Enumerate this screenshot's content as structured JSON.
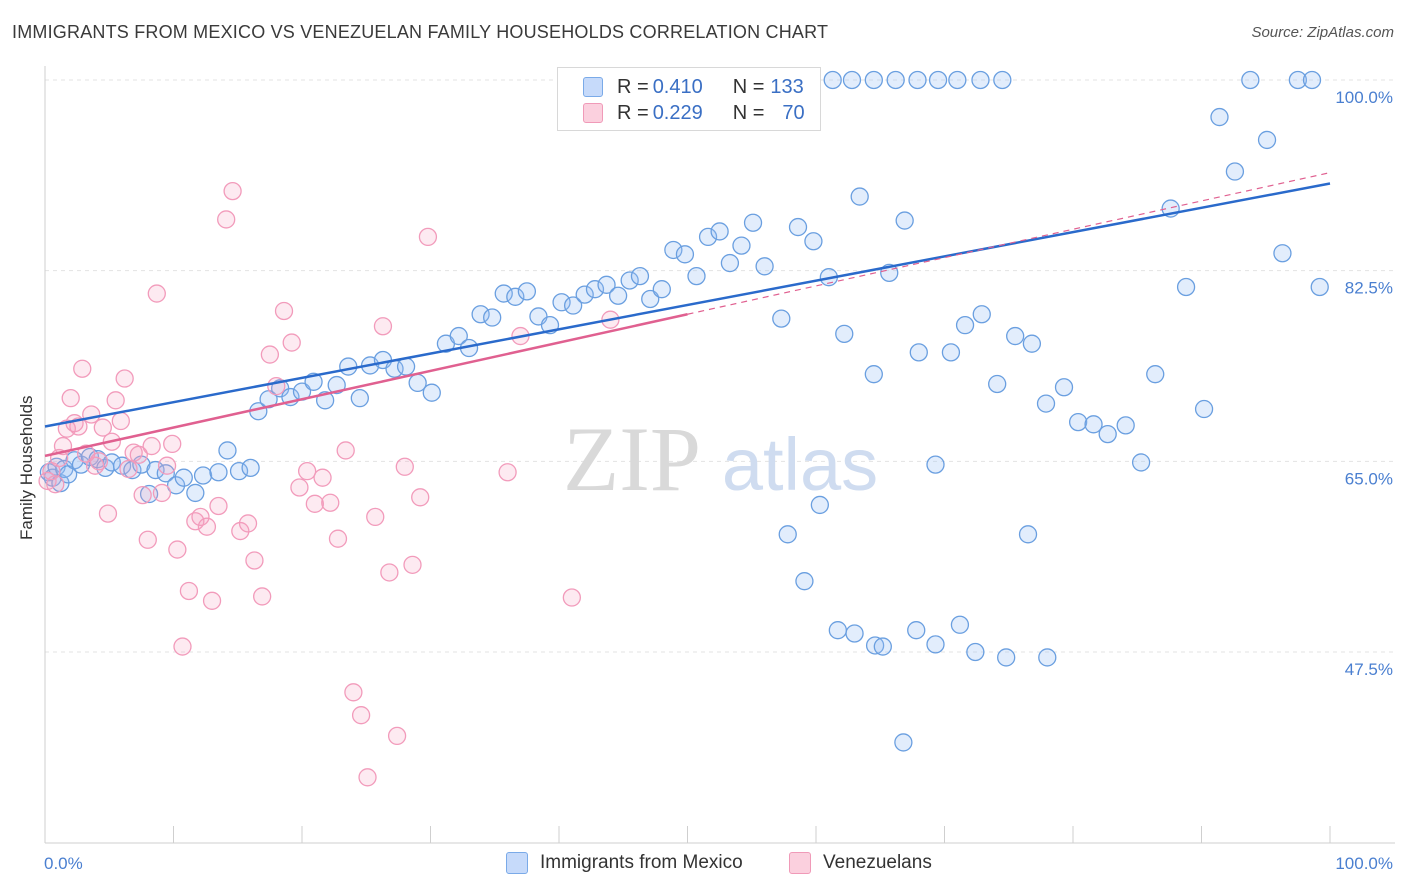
{
  "title": "IMMIGRANTS FROM MEXICO VS VENEZUELAN FAMILY HOUSEHOLDS CORRELATION CHART",
  "source": "Source: ZipAtlas.com",
  "watermark": {
    "zip": "ZIP",
    "atlas": "atlas"
  },
  "legend": {
    "rows": [
      {
        "r_label": "R = ",
        "r_value": "0.410",
        "n_label": "N = ",
        "n_value": "133",
        "color": "#7aaae8"
      },
      {
        "r_label": "R = ",
        "r_value": "0.229",
        "n_label": "N = ",
        "n_value": "70",
        "color": "#f09ab8"
      }
    ]
  },
  "bottom_legend": [
    {
      "label": "Immigrants from Mexico",
      "color": "#7aaae8"
    },
    {
      "label": "Venezuelans",
      "color": "#f09ab8"
    }
  ],
  "chart_data": {
    "type": "scatter",
    "title": "IMMIGRANTS FROM MEXICO VS VENEZUELAN FAMILY HOUSEHOLDS CORRELATION CHART",
    "xlabel": "",
    "ylabel": "Family Households",
    "xlim": [
      0,
      100
    ],
    "ylim": [
      30,
      102
    ],
    "x_tick_labels": [
      "0.0%",
      "100.0%"
    ],
    "y_ticks": [
      47.5,
      65.0,
      82.5,
      100.0
    ],
    "y_tick_labels": [
      "47.5%",
      "65.0%",
      "82.5%",
      "100.0%"
    ],
    "grid": true,
    "series": [
      {
        "name": "Immigrants from Mexico",
        "color": "#6a9fe0",
        "trend": {
          "x": [
            0,
            100
          ],
          "y": [
            68.2,
            90.5
          ],
          "color": "#2a6acb"
        },
        "points": [
          [
            0.3,
            64.0
          ],
          [
            0.6,
            63.5
          ],
          [
            0.9,
            64.5
          ],
          [
            1.2,
            63.0
          ],
          [
            1.5,
            64.3
          ],
          [
            1.8,
            63.8
          ],
          [
            2.3,
            65.1
          ],
          [
            2.8,
            64.7
          ],
          [
            3.5,
            65.4
          ],
          [
            4.1,
            65.2
          ],
          [
            4.7,
            64.4
          ],
          [
            5.2,
            64.9
          ],
          [
            6.0,
            64.6
          ],
          [
            6.8,
            64.2
          ],
          [
            7.5,
            64.7
          ],
          [
            8.1,
            62.0
          ],
          [
            8.6,
            64.2
          ],
          [
            9.4,
            63.9
          ],
          [
            10.2,
            62.8
          ],
          [
            10.8,
            63.5
          ],
          [
            11.7,
            62.1
          ],
          [
            12.3,
            63.7
          ],
          [
            13.5,
            64.0
          ],
          [
            14.2,
            66.0
          ],
          [
            15.1,
            64.1
          ],
          [
            16.0,
            64.4
          ],
          [
            16.6,
            69.6
          ],
          [
            17.4,
            70.7
          ],
          [
            18.3,
            71.7
          ],
          [
            19.1,
            70.9
          ],
          [
            20.0,
            71.4
          ],
          [
            20.9,
            72.3
          ],
          [
            21.8,
            70.6
          ],
          [
            22.7,
            72.0
          ],
          [
            23.6,
            73.7
          ],
          [
            24.5,
            70.8
          ],
          [
            25.3,
            73.8
          ],
          [
            26.3,
            74.3
          ],
          [
            27.2,
            73.5
          ],
          [
            28.1,
            73.7
          ],
          [
            29.0,
            72.2
          ],
          [
            30.1,
            71.3
          ],
          [
            31.2,
            75.8
          ],
          [
            32.2,
            76.5
          ],
          [
            33.0,
            75.4
          ],
          [
            33.9,
            78.5
          ],
          [
            34.8,
            78.2
          ],
          [
            35.7,
            80.4
          ],
          [
            36.6,
            80.1
          ],
          [
            37.5,
            80.6
          ],
          [
            38.4,
            78.3
          ],
          [
            39.3,
            77.5
          ],
          [
            40.2,
            79.6
          ],
          [
            41.1,
            79.3
          ],
          [
            42.0,
            80.3
          ],
          [
            42.8,
            80.8
          ],
          [
            43.7,
            81.2
          ],
          [
            44.6,
            80.2
          ],
          [
            45.5,
            81.6
          ],
          [
            46.3,
            82.0
          ],
          [
            47.1,
            79.9
          ],
          [
            48.0,
            80.8
          ],
          [
            48.9,
            84.4
          ],
          [
            49.8,
            84.0
          ],
          [
            50.7,
            82.0
          ],
          [
            51.6,
            85.6
          ],
          [
            52.5,
            86.1
          ],
          [
            53.3,
            83.2
          ],
          [
            54.2,
            84.8
          ],
          [
            55.1,
            86.9
          ],
          [
            56.0,
            82.9
          ],
          [
            57.3,
            78.1
          ],
          [
            58.6,
            86.5
          ],
          [
            59.8,
            85.2
          ],
          [
            61.0,
            81.9
          ],
          [
            62.2,
            76.7
          ],
          [
            63.4,
            89.3
          ],
          [
            64.5,
            73.0
          ],
          [
            65.7,
            82.3
          ],
          [
            66.9,
            87.1
          ],
          [
            68.0,
            75.0
          ],
          [
            69.3,
            64.7
          ],
          [
            70.5,
            75.0
          ],
          [
            71.6,
            77.5
          ],
          [
            72.9,
            78.5
          ],
          [
            74.1,
            72.1
          ],
          [
            75.5,
            76.5
          ],
          [
            76.8,
            75.8
          ],
          [
            77.9,
            70.3
          ],
          [
            79.3,
            71.8
          ],
          [
            80.4,
            68.6
          ],
          [
            81.6,
            68.4
          ],
          [
            82.7,
            67.5
          ],
          [
            84.1,
            68.3
          ],
          [
            85.3,
            64.9
          ],
          [
            86.4,
            73.0
          ],
          [
            87.6,
            88.2
          ],
          [
            88.8,
            81.0
          ],
          [
            90.2,
            69.8
          ],
          [
            91.4,
            96.6
          ],
          [
            92.6,
            91.6
          ],
          [
            93.8,
            100.0
          ],
          [
            95.1,
            94.5
          ],
          [
            96.3,
            84.1
          ],
          [
            97.5,
            100.0
          ],
          [
            98.6,
            100.0
          ],
          [
            99.2,
            81.0
          ],
          [
            57.8,
            58.3
          ],
          [
            60.3,
            61.0
          ],
          [
            59.1,
            54.0
          ],
          [
            61.7,
            49.5
          ],
          [
            63.0,
            49.2
          ],
          [
            64.6,
            48.1
          ],
          [
            65.2,
            48.0
          ],
          [
            66.8,
            39.2
          ],
          [
            67.8,
            49.5
          ],
          [
            69.3,
            48.2
          ],
          [
            71.2,
            50.0
          ],
          [
            72.4,
            47.5
          ],
          [
            74.8,
            47.0
          ],
          [
            76.5,
            58.3
          ],
          [
            78.0,
            47.0
          ],
          [
            48.2,
            100.0
          ],
          [
            49.7,
            100.0
          ],
          [
            50.3,
            100.0
          ],
          [
            52.0,
            100.0
          ],
          [
            53.5,
            100.0
          ],
          [
            54.8,
            100.0
          ],
          [
            56.3,
            100.0
          ],
          [
            58.0,
            100.0
          ],
          [
            59.6,
            100.0
          ],
          [
            61.3,
            100.0
          ],
          [
            62.8,
            100.0
          ],
          [
            64.5,
            100.0
          ],
          [
            66.2,
            100.0
          ],
          [
            67.9,
            100.0
          ],
          [
            69.5,
            100.0
          ],
          [
            71.0,
            100.0
          ],
          [
            72.8,
            100.0
          ],
          [
            74.5,
            100.0
          ]
        ]
      },
      {
        "name": "Venezuelans",
        "color": "#f29bbb",
        "trend": {
          "x": [
            0,
            50
          ],
          "y": [
            65.5,
            78.5
          ],
          "color": "#e06090"
        },
        "points": [
          [
            0.2,
            63.2
          ],
          [
            0.5,
            64.1
          ],
          [
            0.8,
            62.9
          ],
          [
            1.1,
            65.3
          ],
          [
            1.4,
            66.4
          ],
          [
            1.7,
            68.0
          ],
          [
            2.0,
            70.8
          ],
          [
            2.3,
            68.5
          ],
          [
            2.6,
            68.2
          ],
          [
            2.9,
            73.5
          ],
          [
            3.2,
            65.7
          ],
          [
            3.6,
            69.3
          ],
          [
            3.9,
            64.6
          ],
          [
            4.2,
            65.0
          ],
          [
            4.5,
            68.1
          ],
          [
            4.9,
            60.2
          ],
          [
            5.2,
            66.8
          ],
          [
            5.5,
            70.6
          ],
          [
            5.9,
            68.7
          ],
          [
            6.2,
            72.6
          ],
          [
            6.5,
            64.3
          ],
          [
            6.9,
            65.8
          ],
          [
            7.3,
            65.6
          ],
          [
            7.6,
            61.9
          ],
          [
            8.0,
            57.8
          ],
          [
            8.3,
            66.4
          ],
          [
            8.7,
            80.4
          ],
          [
            9.1,
            62.1
          ],
          [
            9.5,
            64.6
          ],
          [
            9.9,
            66.6
          ],
          [
            10.3,
            56.9
          ],
          [
            10.7,
            48.0
          ],
          [
            11.2,
            53.1
          ],
          [
            11.7,
            59.5
          ],
          [
            12.1,
            59.9
          ],
          [
            12.6,
            59.0
          ],
          [
            13.0,
            52.2
          ],
          [
            13.5,
            60.9
          ],
          [
            14.1,
            87.2
          ],
          [
            14.6,
            89.8
          ],
          [
            15.2,
            58.6
          ],
          [
            15.8,
            59.3
          ],
          [
            16.3,
            55.9
          ],
          [
            16.9,
            52.6
          ],
          [
            17.5,
            74.8
          ],
          [
            18.0,
            71.9
          ],
          [
            18.6,
            78.8
          ],
          [
            19.2,
            75.9
          ],
          [
            19.8,
            62.6
          ],
          [
            20.4,
            64.1
          ],
          [
            21.0,
            61.1
          ],
          [
            21.6,
            63.5
          ],
          [
            22.2,
            61.2
          ],
          [
            22.8,
            57.9
          ],
          [
            23.4,
            66.0
          ],
          [
            24.0,
            43.8
          ],
          [
            24.6,
            41.7
          ],
          [
            25.1,
            36.0
          ],
          [
            25.7,
            59.9
          ],
          [
            26.3,
            77.4
          ],
          [
            26.8,
            54.8
          ],
          [
            27.4,
            39.8
          ],
          [
            28.0,
            64.5
          ],
          [
            28.6,
            55.5
          ],
          [
            29.2,
            61.7
          ],
          [
            29.8,
            85.6
          ],
          [
            36.0,
            64.0
          ],
          [
            37.0,
            76.5
          ],
          [
            41.0,
            52.5
          ],
          [
            44.0,
            78.0
          ]
        ]
      }
    ]
  }
}
